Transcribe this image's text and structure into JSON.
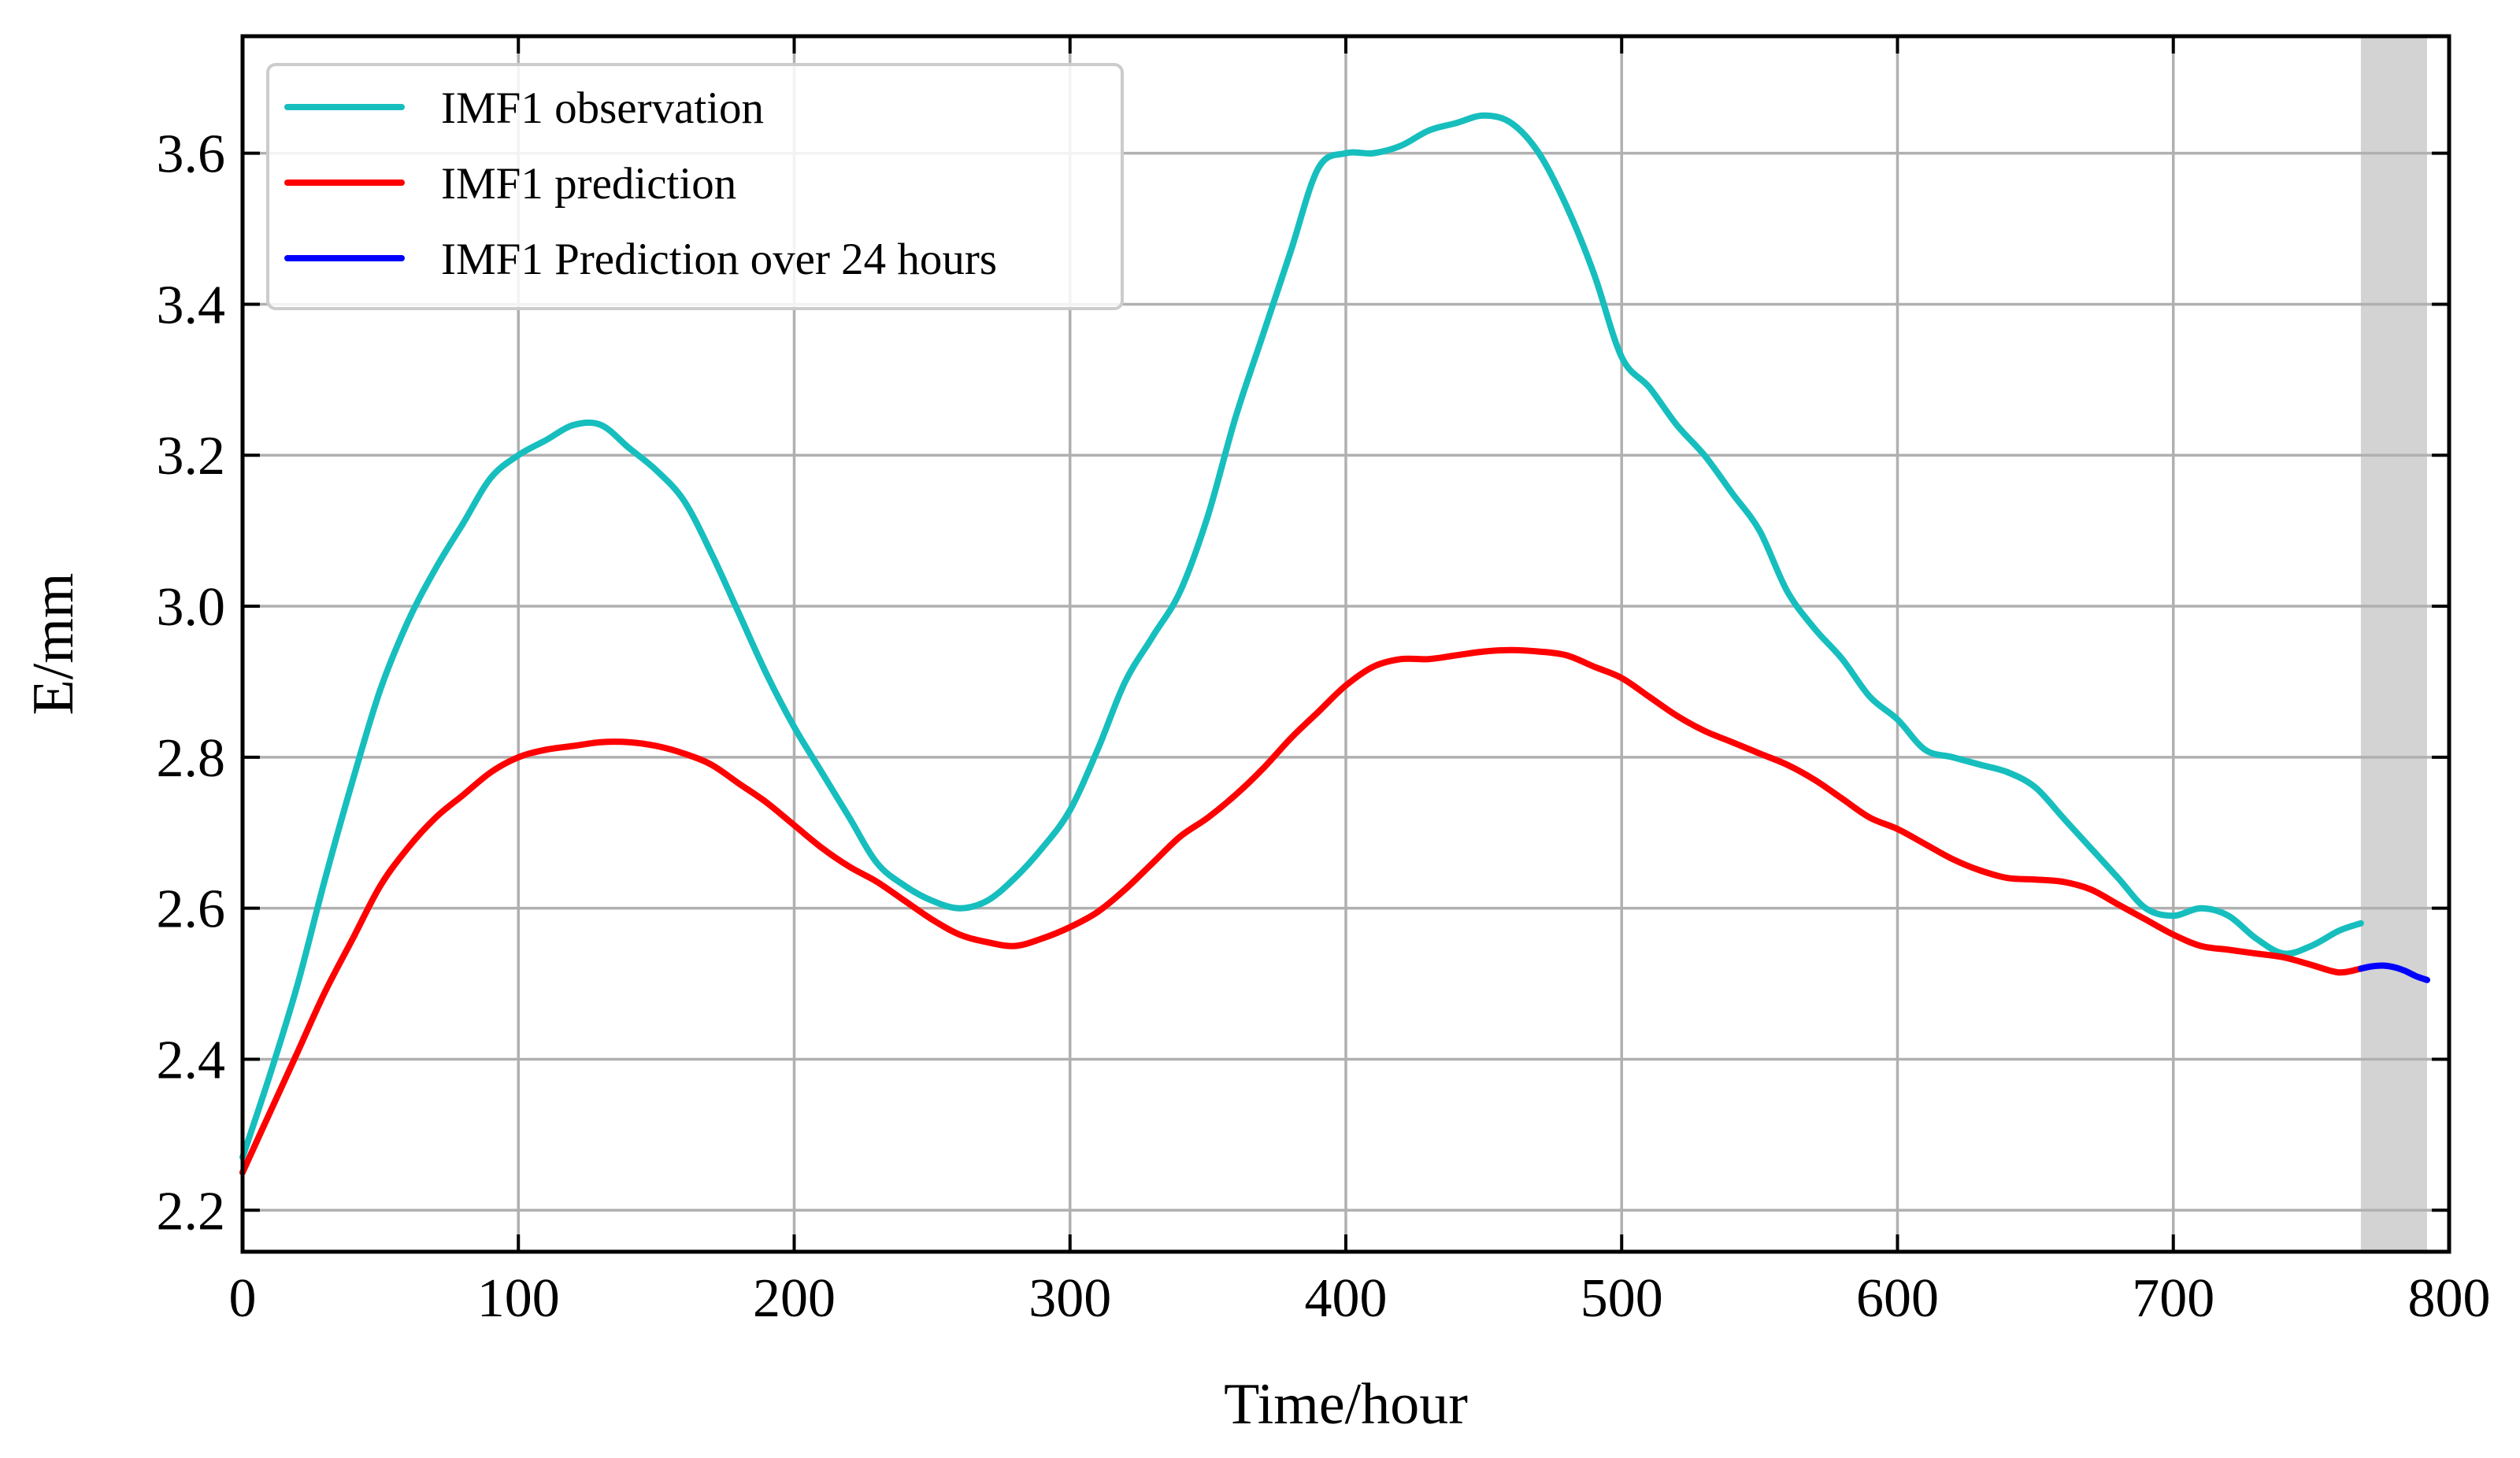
{
  "chart_data": {
    "type": "line",
    "title": "",
    "xlabel": "Time/hour",
    "ylabel": "E/mm",
    "xlim": [
      0,
      800
    ],
    "ylim": [
      2.145,
      3.755
    ],
    "xticks": [
      0,
      100,
      200,
      300,
      400,
      500,
      600,
      700,
      800
    ],
    "yticks": [
      2.2,
      2.4,
      2.6,
      2.8,
      3.0,
      3.2,
      3.4,
      3.6
    ],
    "xtick_labels": [
      "0",
      "100",
      "200",
      "300",
      "400",
      "500",
      "600",
      "700",
      "800"
    ],
    "ytick_labels": [
      "2.2",
      "2.4",
      "2.6",
      "2.8",
      "3.0",
      "3.2",
      "3.4",
      "3.6"
    ],
    "grid": true,
    "legend_position": "top-left",
    "shaded_region": {
      "x_start": 768,
      "x_end": 792,
      "color": "#d3d3d3"
    },
    "series": [
      {
        "name": "IMF1 observation",
        "color": "#17bebe",
        "x": [
          0,
          10,
          20,
          30,
          40,
          50,
          60,
          70,
          80,
          90,
          100,
          110,
          120,
          130,
          140,
          150,
          160,
          170,
          180,
          190,
          200,
          210,
          220,
          230,
          240,
          250,
          260,
          270,
          280,
          290,
          300,
          310,
          320,
          330,
          340,
          350,
          360,
          370,
          380,
          390,
          400,
          410,
          420,
          430,
          440,
          450,
          460,
          470,
          480,
          490,
          500,
          510,
          520,
          530,
          540,
          550,
          560,
          570,
          580,
          590,
          600,
          610,
          620,
          630,
          640,
          650,
          660,
          670,
          680,
          690,
          700,
          710,
          720,
          730,
          740,
          750,
          760,
          768
        ],
        "values": [
          2.27,
          2.38,
          2.5,
          2.64,
          2.77,
          2.89,
          2.98,
          3.05,
          3.11,
          3.17,
          3.2,
          3.22,
          3.24,
          3.24,
          3.21,
          3.18,
          3.14,
          3.07,
          2.99,
          2.91,
          2.84,
          2.78,
          2.72,
          2.66,
          2.63,
          2.61,
          2.6,
          2.61,
          2.64,
          2.68,
          2.73,
          2.81,
          2.9,
          2.96,
          3.02,
          3.12,
          3.25,
          3.36,
          3.47,
          3.58,
          3.6,
          3.6,
          3.61,
          3.63,
          3.64,
          3.65,
          3.64,
          3.6,
          3.53,
          3.44,
          3.33,
          3.29,
          3.24,
          3.2,
          3.15,
          3.1,
          3.02,
          2.97,
          2.93,
          2.88,
          2.85,
          2.81,
          2.8,
          2.79,
          2.78,
          2.76,
          2.72,
          2.68,
          2.64,
          2.6,
          2.59,
          2.6,
          2.59,
          2.56,
          2.54,
          2.55,
          2.57,
          2.58
        ]
      },
      {
        "name": "IMF1 prediction",
        "color": "#ff0000",
        "x": [
          0,
          10,
          20,
          30,
          40,
          50,
          60,
          70,
          80,
          90,
          100,
          110,
          120,
          130,
          140,
          150,
          160,
          170,
          180,
          190,
          200,
          210,
          220,
          230,
          240,
          250,
          260,
          270,
          280,
          290,
          300,
          310,
          320,
          330,
          340,
          350,
          360,
          370,
          380,
          390,
          400,
          410,
          420,
          430,
          440,
          450,
          460,
          470,
          480,
          490,
          500,
          510,
          520,
          530,
          540,
          550,
          560,
          570,
          580,
          590,
          600,
          610,
          620,
          630,
          640,
          650,
          660,
          670,
          680,
          690,
          700,
          710,
          720,
          730,
          740,
          750,
          760,
          768
        ],
        "values": [
          2.25,
          2.33,
          2.41,
          2.49,
          2.56,
          2.63,
          2.68,
          2.72,
          2.75,
          2.78,
          2.8,
          2.81,
          2.815,
          2.82,
          2.82,
          2.815,
          2.805,
          2.79,
          2.765,
          2.74,
          2.71,
          2.68,
          2.655,
          2.635,
          2.61,
          2.585,
          2.565,
          2.555,
          2.55,
          2.56,
          2.575,
          2.595,
          2.625,
          2.66,
          2.695,
          2.72,
          2.75,
          2.785,
          2.825,
          2.86,
          2.895,
          2.92,
          2.93,
          2.93,
          2.935,
          2.94,
          2.942,
          2.94,
          2.935,
          2.92,
          2.905,
          2.88,
          2.855,
          2.835,
          2.82,
          2.805,
          2.79,
          2.77,
          2.745,
          2.72,
          2.705,
          2.685,
          2.665,
          2.65,
          2.64,
          2.638,
          2.635,
          2.625,
          2.605,
          2.585,
          2.565,
          2.55,
          2.545,
          2.54,
          2.535,
          2.525,
          2.515,
          2.52
        ]
      },
      {
        "name": "IMF1 Prediction over 24 hours",
        "color": "#0000ff",
        "x": [
          768,
          772,
          776,
          780,
          784,
          788,
          792
        ],
        "values": [
          2.52,
          2.523,
          2.524,
          2.522,
          2.517,
          2.51,
          2.505
        ]
      }
    ]
  }
}
